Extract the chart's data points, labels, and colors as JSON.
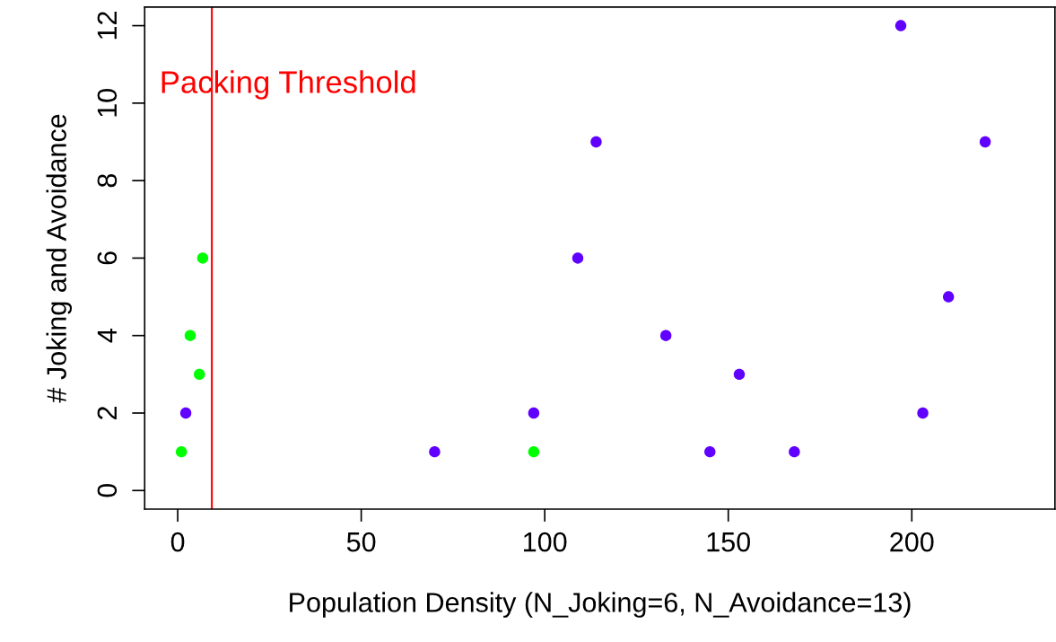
{
  "chart_data": {
    "type": "scatter",
    "xlabel": "Population Density (N_Joking=6, N_Avoidance=13)",
    "ylabel": "# Joking and Avoidance",
    "xlim": [
      -9,
      239
    ],
    "ylim": [
      -0.48,
      12.48
    ],
    "xticks": [
      0,
      50,
      100,
      150,
      200
    ],
    "yticks": [
      0,
      2,
      4,
      6,
      8,
      10,
      12
    ],
    "grid": false,
    "legend": false,
    "marker": "circle",
    "series": [
      {
        "color": "#6000ff",
        "x": [
          2.2,
          70,
          97,
          109,
          114,
          133,
          145,
          153,
          168,
          197,
          203,
          210,
          220
        ],
        "values": [
          2,
          1,
          2,
          6,
          9,
          4,
          1,
          3,
          1,
          12,
          2,
          5,
          9
        ]
      },
      {
        "color": "#00ff00",
        "x": [
          1,
          3.4,
          5.9,
          6.8,
          97
        ],
        "values": [
          1,
          4,
          3,
          6,
          1
        ]
      }
    ],
    "ref_lines": [
      {
        "axis": "x",
        "value": 9.3,
        "label": "Packing Threshold",
        "color": "#ff0000",
        "line_style": "solid"
      }
    ]
  }
}
